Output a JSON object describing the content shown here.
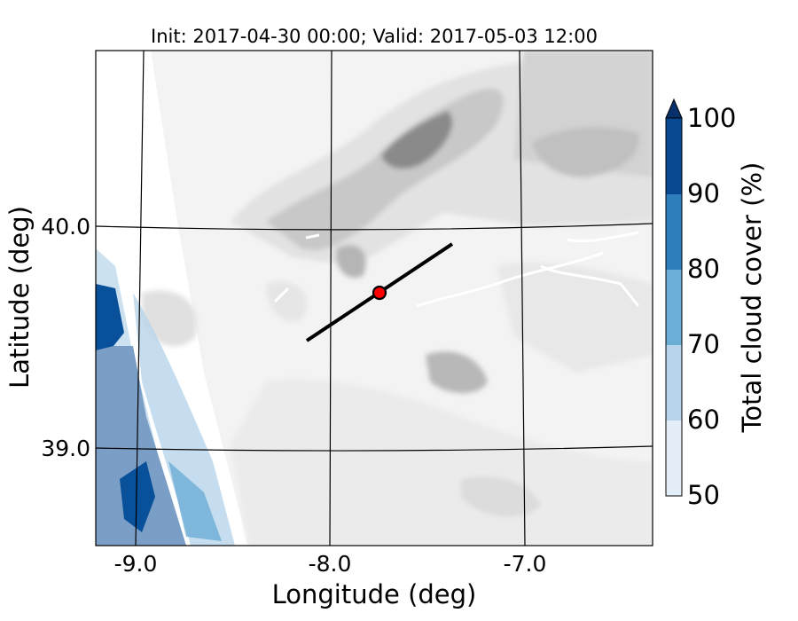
{
  "title": "Init: 2017-04-30 00:00; Valid: 2017-05-03 12:00",
  "xlabel": "Longitude (deg)",
  "ylabel": "Latitude (deg)",
  "x_ticks": [
    "-9.0",
    "-8.0",
    "-7.0"
  ],
  "y_ticks": [
    "40.0",
    "39.0"
  ],
  "colorbar": {
    "label": "Total cloud cover (%)",
    "ticks": [
      "50",
      "60",
      "70",
      "80",
      "90",
      "100"
    ],
    "colors": [
      "#e3eef8",
      "#b6d4ea",
      "#6baed6",
      "#2f7ebc",
      "#084a91"
    ],
    "extend_color": "#08306b"
  },
  "terrain_colors": [
    "#f4f4f4",
    "#e6e6e6",
    "#d0d0d0",
    "#b4b4b4",
    "#8c8c8c",
    "#5a5a5a"
  ],
  "chart_data": {
    "type": "map",
    "xlim": [
      -9.25,
      -6.35
    ],
    "ylim": [
      38.55,
      40.8
    ],
    "cross_section_line": {
      "start": [
        -8.13,
        39.47
      ],
      "end": [
        -7.37,
        39.91
      ],
      "color": "#000000"
    },
    "marker": {
      "lon": -7.75,
      "lat": 39.69,
      "color": "#ff0000"
    },
    "cloud_cover_levels": [
      50,
      60,
      70,
      80,
      90,
      100
    ]
  }
}
